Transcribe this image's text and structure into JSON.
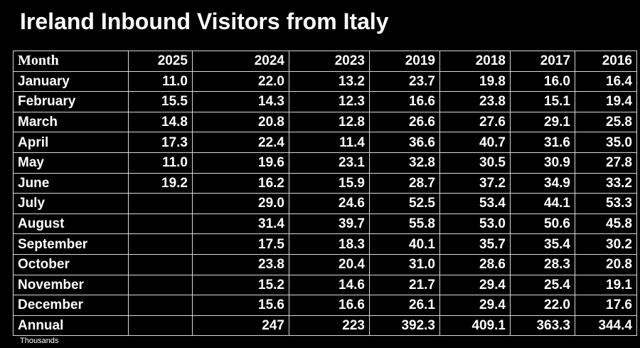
{
  "title": "Ireland Inbound Visitors from Italy",
  "footnote": "Thousands",
  "chart_data": {
    "type": "table",
    "title": "Ireland Inbound Visitors from Italy",
    "unit_note": "Thousands",
    "columns": [
      "Month",
      "2025",
      "2024",
      "2023",
      "2019",
      "2018",
      "2017",
      "2016"
    ],
    "rows": [
      [
        "January",
        "11.0",
        "22.0",
        "13.2",
        "23.7",
        "19.8",
        "16.0",
        "16.4"
      ],
      [
        "February",
        "15.5",
        "14.3",
        "12.3",
        "16.6",
        "23.8",
        "15.1",
        "19.4"
      ],
      [
        "March",
        "14.8",
        "20.8",
        "12.8",
        "26.6",
        "27.6",
        "29.1",
        "25.8"
      ],
      [
        "April",
        "17.3",
        "22.4",
        "11.4",
        "36.6",
        "40.7",
        "31.6",
        "35.0"
      ],
      [
        "May",
        "11.0",
        "19.6",
        "23.1",
        "32.8",
        "30.5",
        "30.9",
        "27.8"
      ],
      [
        "June",
        "19.2",
        "16.2",
        "15.9",
        "28.7",
        "37.2",
        "34.9",
        "33.2"
      ],
      [
        "July",
        "",
        "29.0",
        "24.6",
        "52.5",
        "53.4",
        "44.1",
        "53.3"
      ],
      [
        "August",
        "",
        "31.4",
        "39.7",
        "55.8",
        "53.0",
        "50.6",
        "45.8"
      ],
      [
        "September",
        "",
        "17.5",
        "18.3",
        "40.1",
        "35.7",
        "35.4",
        "30.2"
      ],
      [
        "October",
        "",
        "23.8",
        "20.4",
        "31.0",
        "28.6",
        "28.3",
        "20.8"
      ],
      [
        "November",
        "",
        "15.2",
        "14.6",
        "21.7",
        "29.4",
        "25.4",
        "19.1"
      ],
      [
        "December",
        "",
        "15.6",
        "16.6",
        "26.1",
        "29.4",
        "22.0",
        "17.6"
      ],
      [
        "Annual",
        "",
        "247",
        "223",
        "392.3",
        "409.1",
        "363.3",
        "344.4"
      ]
    ]
  }
}
